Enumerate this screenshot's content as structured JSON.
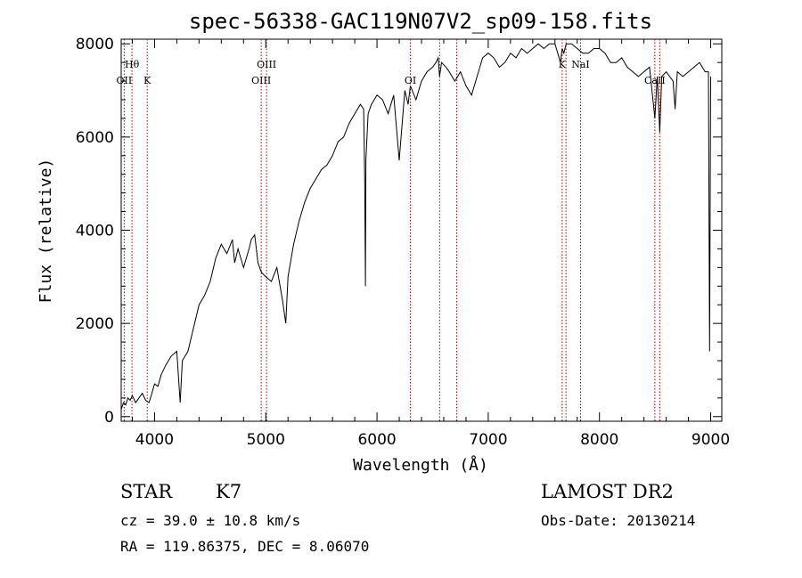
{
  "chart_data": {
    "type": "line",
    "title": "spec-56338-GAC119N07V2_sp09-158.fits",
    "xlabel": "Wavelength (Å)",
    "ylabel": "Flux (relative)",
    "xlim": [
      3700,
      9100
    ],
    "ylim": [
      -100,
      8100
    ],
    "x_ticks": [
      4000,
      5000,
      6000,
      7000,
      8000,
      9000
    ],
    "x_tick_labels": [
      "4000",
      "5000",
      "6000",
      "7000",
      "8000",
      "9000"
    ],
    "y_ticks": [
      0,
      2000,
      4000,
      6000,
      8000
    ],
    "y_tick_labels": [
      "0",
      "2000",
      "4000",
      "6000",
      "8000"
    ],
    "grid": false,
    "series": [
      {
        "x": [
          3700,
          3720,
          3740,
          3760,
          3780,
          3800,
          3830,
          3860,
          3890,
          3920,
          3950,
          3970,
          4000,
          4030,
          4060,
          4100,
          4150,
          4200,
          4230,
          4250,
          4300,
          4350,
          4400,
          4450,
          4500,
          4550,
          4600,
          4650,
          4700,
          4720,
          4750,
          4800,
          4850,
          4870,
          4900,
          4930,
          4960,
          5000,
          5050,
          5100,
          5150,
          5180,
          5200,
          5250,
          5300,
          5350,
          5400,
          5450,
          5500,
          5550,
          5600,
          5650,
          5700,
          5750,
          5800,
          5850,
          5880,
          5890,
          5896,
          5900,
          5920,
          5950,
          6000,
          6050,
          6100,
          6150,
          6200,
          6250,
          6280,
          6300,
          6350,
          6400,
          6450,
          6500,
          6530,
          6550,
          6563,
          6580,
          6620,
          6650,
          6700,
          6750,
          6800,
          6850,
          6900,
          6950,
          7000,
          7050,
          7100,
          7150,
          7200,
          7250,
          7300,
          7350,
          7400,
          7450,
          7500,
          7550,
          7600,
          7650,
          7665,
          7680,
          7700,
          7750,
          7800,
          7850,
          7900,
          7950,
          8000,
          8050,
          8100,
          8150,
          8200,
          8250,
          8300,
          8350,
          8400,
          8450,
          8498,
          8520,
          8542,
          8560,
          8600,
          8662,
          8680,
          8700,
          8750,
          8800,
          8850,
          8900,
          8950,
          8980,
          8990,
          9000
        ],
        "y": [
          150,
          300,
          250,
          400,
          350,
          450,
          300,
          400,
          500,
          350,
          300,
          450,
          700,
          650,
          900,
          1100,
          1300,
          1400,
          300,
          1200,
          1400,
          1900,
          2400,
          2600,
          2900,
          3400,
          3700,
          3500,
          3800,
          3300,
          3600,
          3200,
          3600,
          3800,
          3900,
          3300,
          3100,
          3000,
          2900,
          3200,
          2500,
          2000,
          3000,
          3700,
          4200,
          4600,
          4900,
          5100,
          5300,
          5400,
          5600,
          5900,
          6000,
          6300,
          6500,
          6700,
          6600,
          5000,
          2800,
          5500,
          6500,
          6700,
          6900,
          6800,
          6500,
          6900,
          5500,
          7000,
          6700,
          7100,
          6800,
          7200,
          7400,
          7500,
          7600,
          7700,
          7300,
          7600,
          7500,
          7400,
          7200,
          7400,
          7100,
          6900,
          7300,
          7700,
          7800,
          7700,
          7500,
          7600,
          7800,
          7700,
          7900,
          7800,
          7900,
          8000,
          7900,
          8000,
          8000,
          7600,
          7900,
          7800,
          8000,
          8000,
          7900,
          7800,
          7800,
          7900,
          7900,
          7800,
          7600,
          7600,
          7700,
          7500,
          7400,
          7300,
          7400,
          7500,
          6400,
          7300,
          6100,
          7300,
          7400,
          7200,
          6600,
          7400,
          7300,
          7400,
          7500,
          7600,
          7400,
          7400,
          1400,
          7300
        ]
      }
    ],
    "line_markers": [
      {
        "wavelength": 3727,
        "label": "OII",
        "row": 2
      },
      {
        "wavelength": 3797,
        "label": "Hθ",
        "row": 1
      },
      {
        "wavelength": 3934,
        "label": "K",
        "row": 2
      },
      {
        "wavelength": 4959,
        "label": "OIII",
        "row": 2
      },
      {
        "wavelength": 5007,
        "label": "OIII",
        "row": 1
      },
      {
        "wavelength": 6300,
        "label": "OI",
        "row": 2
      },
      {
        "wavelength": 6563,
        "label": "",
        "row": 1
      },
      {
        "wavelength": 6717,
        "label": "",
        "row": 1
      },
      {
        "wavelength": 7665,
        "label": "K",
        "row": 1
      },
      {
        "wavelength": 7699,
        "label": "",
        "row": 1
      },
      {
        "wavelength": 7830,
        "label": "NaI",
        "row": 1
      },
      {
        "wavelength": 8498,
        "label": "CaII",
        "row": 2
      },
      {
        "wavelength": 8542,
        "label": "",
        "row": 1
      }
    ]
  },
  "info": {
    "object_class": "STAR",
    "subclass": "K7",
    "survey": "LAMOST DR2",
    "redshift_line": "cz = 39.0 ± 10.8 km/s",
    "obs_date_line": "Obs-Date: 20130214",
    "coords_line": "RA = 119.86375, DEC =   8.06070"
  }
}
